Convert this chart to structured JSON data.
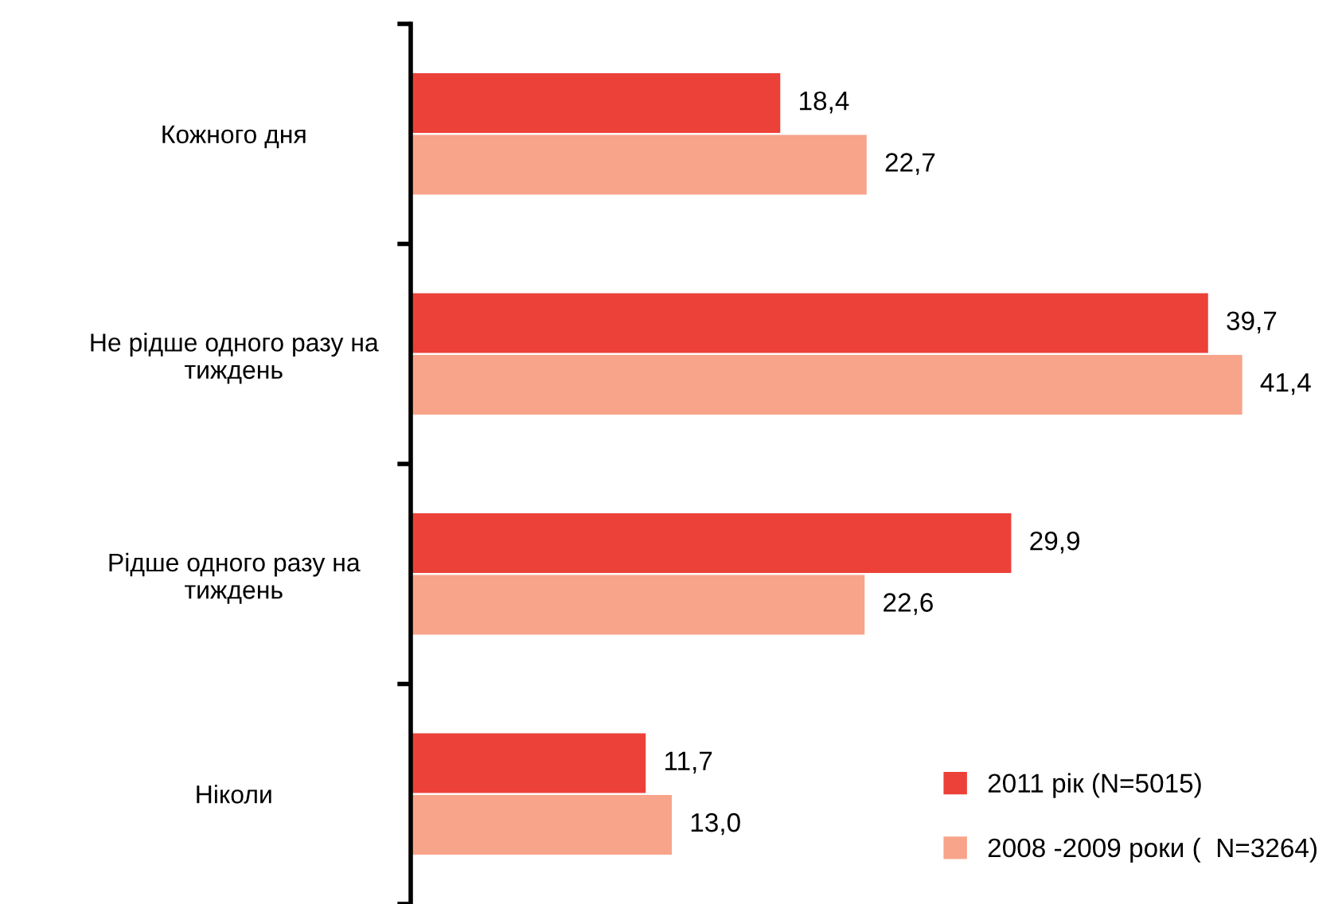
{
  "chart_data": {
    "type": "bar",
    "orientation": "horizontal",
    "categories": [
      "Кожного дня",
      "Не рідше одного разу на\nтиждень",
      "Рідше одного разу на\nтиждень",
      "Ніколи"
    ],
    "series": [
      {
        "name": "2011 рік (N=5015)",
        "color": "#ec4138",
        "values": [
          18.4,
          39.7,
          29.9,
          11.7
        ],
        "value_labels": [
          "18,4",
          "39,7",
          "29,9",
          "11,7"
        ]
      },
      {
        "name": "2008 -2009 роки (  N=3264)",
        "color": "#f7a48a",
        "values": [
          22.7,
          41.4,
          22.6,
          13.0
        ],
        "value_labels": [
          "22,7",
          "41,4",
          "22,6",
          "13,0"
        ]
      }
    ],
    "legend": "bottom right",
    "grid": false
  }
}
